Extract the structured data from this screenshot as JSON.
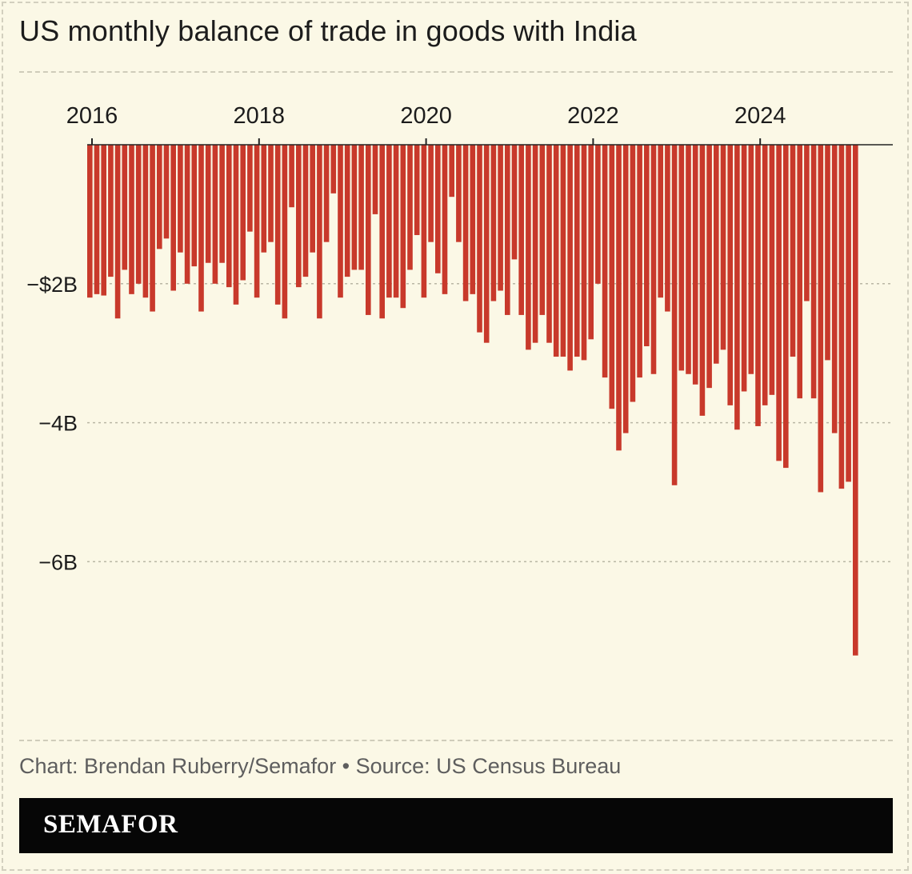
{
  "title": "US monthly balance of trade in goods with India",
  "credit": "Chart: Brendan Ruberry/Semafor • Source: US Census Bureau",
  "brand": "SEMAFOR",
  "colors": {
    "background": "#fbf8e6",
    "bar": "#c8392b",
    "text": "#1c1c1c",
    "credit": "#5e5e5e",
    "brandbar": "#060606"
  },
  "chart_data": {
    "type": "bar",
    "title": "US monthly balance of trade in goods with India",
    "xlabel": "",
    "ylabel": "",
    "x_tick_labels": [
      "2016",
      "2018",
      "2020",
      "2022",
      "2024"
    ],
    "y_tick_labels": [
      {
        "value": -2,
        "label": "−$2B"
      },
      {
        "value": -4,
        "label": "−4B"
      },
      {
        "value": -6,
        "label": "−6B"
      }
    ],
    "ylim": [
      -7.75,
      0
    ],
    "start": "2016-01",
    "unit": "billion USD",
    "grid": true,
    "values": [
      -2.2,
      -2.15,
      -2.17,
      -1.9,
      -2.5,
      -1.8,
      -2.15,
      -2.0,
      -2.2,
      -2.4,
      -1.5,
      -1.35,
      -2.1,
      -1.55,
      -2.0,
      -1.75,
      -2.4,
      -1.7,
      -2.0,
      -1.7,
      -2.05,
      -2.3,
      -1.95,
      -1.25,
      -2.2,
      -1.55,
      -1.4,
      -2.3,
      -2.5,
      -0.9,
      -2.05,
      -1.9,
      -1.55,
      -2.5,
      -1.4,
      -0.7,
      -2.2,
      -1.9,
      -1.8,
      -1.8,
      -2.45,
      -1.0,
      -2.5,
      -2.2,
      -2.2,
      -2.35,
      -1.8,
      -1.3,
      -2.2,
      -1.4,
      -1.85,
      -2.15,
      -0.75,
      -1.4,
      -2.25,
      -2.15,
      -2.7,
      -2.85,
      -2.25,
      -2.1,
      -2.45,
      -1.65,
      -2.45,
      -2.95,
      -2.85,
      -2.45,
      -2.85,
      -3.05,
      -3.05,
      -3.25,
      -3.05,
      -3.1,
      -2.8,
      -2.0,
      -3.35,
      -3.8,
      -4.4,
      -4.15,
      -3.7,
      -3.35,
      -2.9,
      -3.3,
      -2.2,
      -2.4,
      -4.9,
      -3.25,
      -3.3,
      -3.45,
      -3.9,
      -3.5,
      -3.15,
      -2.95,
      -3.75,
      -4.1,
      -3.55,
      -3.3,
      -4.05,
      -3.75,
      -3.6,
      -4.55,
      -4.65,
      -3.05,
      -3.65,
      -2.25,
      -3.65,
      -5.0,
      -3.1,
      -4.15,
      -4.95,
      -4.85,
      -7.35
    ]
  }
}
